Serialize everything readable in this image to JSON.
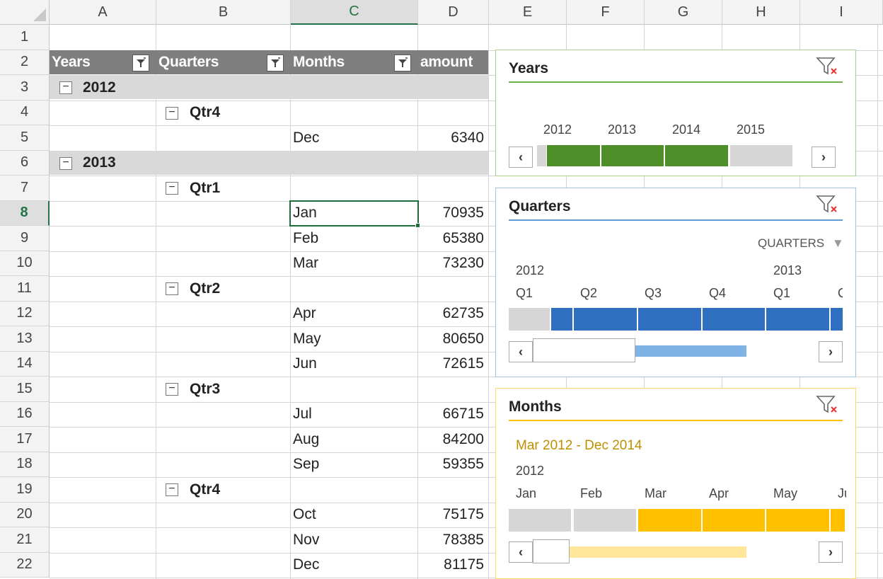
{
  "columns": [
    "A",
    "B",
    "C",
    "D",
    "E",
    "F",
    "G",
    "H",
    "I"
  ],
  "rows": [
    "1",
    "2",
    "3",
    "4",
    "5",
    "6",
    "7",
    "8",
    "9",
    "10",
    "11",
    "12",
    "13",
    "14",
    "15",
    "16",
    "17",
    "18",
    "19",
    "20",
    "21",
    "22"
  ],
  "selected_column": "C",
  "selected_row": "8",
  "pivot": {
    "headers": [
      "Years",
      "Quarters",
      "Months",
      "amount"
    ],
    "years": [
      {
        "label": "2012",
        "quarters": [
          {
            "label": "Qtr4",
            "months": [
              {
                "m": "Dec",
                "v": "6340"
              }
            ]
          }
        ]
      },
      {
        "label": "2013",
        "quarters": [
          {
            "label": "Qtr1",
            "months": [
              {
                "m": "Jan",
                "v": "70935"
              },
              {
                "m": "Feb",
                "v": "65380"
              },
              {
                "m": "Mar",
                "v": "73230"
              }
            ]
          },
          {
            "label": "Qtr2",
            "months": [
              {
                "m": "Apr",
                "v": "62735"
              },
              {
                "m": "May",
                "v": "80650"
              },
              {
                "m": "Jun",
                "v": "72615"
              }
            ]
          },
          {
            "label": "Qtr3",
            "months": [
              {
                "m": "Jul",
                "v": "66715"
              },
              {
                "m": "Aug",
                "v": "84200"
              },
              {
                "m": "Sep",
                "v": "59355"
              }
            ]
          },
          {
            "label": "Qtr4",
            "months": [
              {
                "m": "Oct",
                "v": "75175"
              },
              {
                "m": "Nov",
                "v": "78385"
              },
              {
                "m": "Dec",
                "v": "81175"
              }
            ]
          }
        ]
      }
    ]
  },
  "slicers": {
    "years": {
      "title": "Years",
      "accent": "#70ad47",
      "bar_color": "#4e8f2a",
      "labels": [
        "2012",
        "2013",
        "2014",
        "2015"
      ]
    },
    "quarters": {
      "title": "Quarters",
      "accent": "#5b9bd5",
      "bar_color": "#2e6fbf",
      "level": "QUARTERS",
      "years": [
        "2012",
        "2013"
      ],
      "labels": [
        "Q1",
        "Q2",
        "Q3",
        "Q4",
        "Q1",
        "Q"
      ]
    },
    "months": {
      "title": "Months",
      "accent": "#ffc000",
      "bar_color": "#ffc000",
      "range": "Mar 2012 - Dec 2014",
      "years": [
        "2012"
      ],
      "labels": [
        "Jan",
        "Feb",
        "Mar",
        "Apr",
        "May",
        "Ju"
      ]
    }
  },
  "icons": {
    "clear_filter": "funnel-x-icon",
    "filter_button": "dropdown-filter-icon",
    "collapse": "minus-icon",
    "nav_prev": "chevron-left-icon",
    "nav_next": "chevron-right-icon"
  }
}
